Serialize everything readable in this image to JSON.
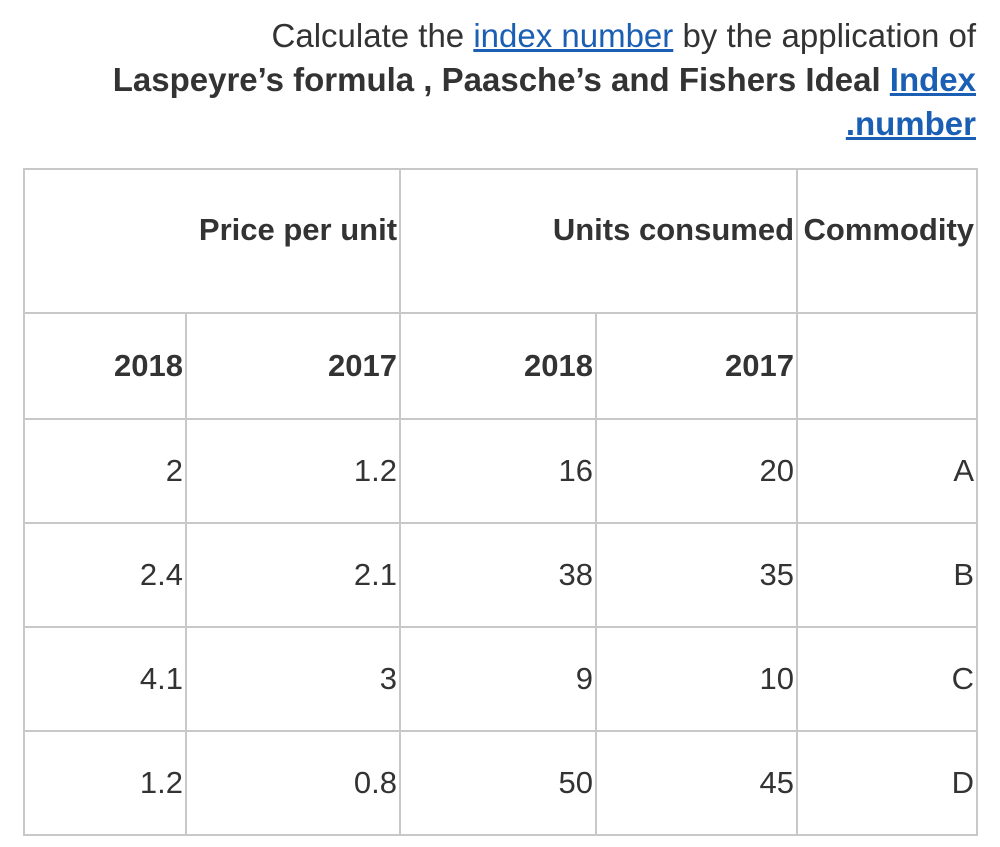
{
  "question": {
    "part1": "Calculate the ",
    "link1": "index number",
    "part2": " by the application of",
    "bold_text": "Laspeyre’s formula , Paasche’s and Fishers Ideal ",
    "link2": "Index",
    "link3": ".number"
  },
  "table": {
    "group_headers": {
      "price": "Price per unit",
      "units": "Units consumed",
      "commodity": "Commodity"
    },
    "year_headers": [
      "2018",
      "2017",
      "2018",
      "2017",
      ""
    ],
    "rows": [
      [
        "2",
        "1.2",
        "16",
        "20",
        "A"
      ],
      [
        "2.4",
        "2.1",
        "38",
        "35",
        "B"
      ],
      [
        "4.1",
        "3",
        "9",
        "10",
        "C"
      ],
      [
        "1.2",
        "0.8",
        "50",
        "45",
        "D"
      ]
    ]
  }
}
